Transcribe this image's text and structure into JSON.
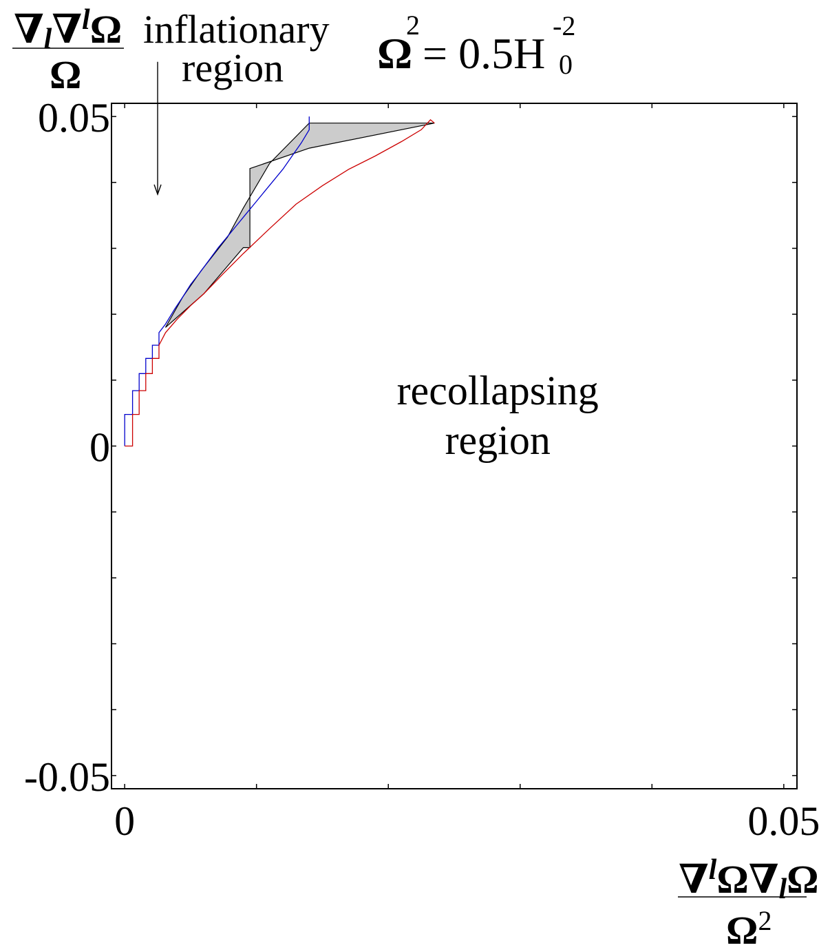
{
  "chart_data": {
    "type": "area",
    "title_lhs": "Ω",
    "title_exp": "2",
    "title_rhs": "= 0.5H",
    "title_rhs_sub": "0",
    "title_rhs_exp": "-2",
    "ylabel": {
      "numerator": [
        "∇",
        "l",
        "∇",
        "l",
        "Ω"
      ],
      "denominator": "Ω"
    },
    "xlabel": {
      "numerator": [
        "∇",
        "l",
        "Ω",
        "∇",
        "l",
        "Ω"
      ],
      "denominator": "Ω",
      "denominator_exp": "2"
    },
    "xlim": [
      -0.001,
      0.051
    ],
    "ylim": [
      -0.052,
      0.052
    ],
    "x_ticks": [
      0,
      0.01,
      0.02,
      0.03,
      0.04,
      0.05
    ],
    "y_ticks": [
      -0.05,
      -0.04,
      -0.03,
      -0.02,
      -0.01,
      0,
      0.01,
      0.02,
      0.03,
      0.04,
      0.05
    ],
    "x_tick_labels": [
      {
        "value": 0,
        "label": "0"
      },
      {
        "value": 0.05,
        "label": "0.05"
      }
    ],
    "y_tick_labels": [
      {
        "value": 0.05,
        "label": "0.05"
      },
      {
        "value": 0,
        "label": "0"
      },
      {
        "value": -0.05,
        "label": "-0.05"
      }
    ],
    "annotations": [
      {
        "id": "inflationary",
        "lines": [
          "inflationary",
          "region"
        ]
      },
      {
        "id": "recollapsing",
        "lines": [
          "recollapsing",
          "region"
        ],
        "x": 0.0283,
        "y": 0.0063
      }
    ],
    "arrow": {
      "x": 0.0025,
      "from_y": 0.0583,
      "to_y": 0.0382
    },
    "shaded_region": {
      "fill": "#cccccc",
      "x": [
        0.0031,
        0.0044,
        0.0058,
        0.0078,
        0.009,
        0.011,
        0.014,
        0.0235,
        0.014,
        0.0095,
        0.0095,
        0.009,
        0.006,
        0.0031
      ],
      "y": [
        0.018,
        0.0226,
        0.0266,
        0.0317,
        0.0361,
        0.0429,
        0.049,
        0.049,
        0.0452,
        0.0421,
        0.0301,
        0.0301,
        0.0231,
        0.018
      ]
    },
    "series": [
      {
        "color": "#0000cc",
        "x": [
          0,
          0,
          0.0006,
          0.0006,
          0.0011,
          0.0011,
          0.0016,
          0.0016,
          0.0021,
          0.0021,
          0.0026,
          0.0026,
          0.0031,
          0.0038,
          0.0044,
          0.005,
          0.0057,
          0.0064,
          0.0071,
          0.0078,
          0.0085,
          0.0092,
          0.0099,
          0.0106,
          0.0113,
          0.012,
          0.0127,
          0.0134,
          0.014,
          0.014
        ],
        "y": [
          0,
          0.0048,
          0.0048,
          0.0084,
          0.0084,
          0.011,
          0.011,
          0.0133,
          0.0133,
          0.0153,
          0.0153,
          0.0172,
          0.0185,
          0.0208,
          0.0226,
          0.0245,
          0.0263,
          0.0282,
          0.0301,
          0.0318,
          0.0335,
          0.0352,
          0.0369,
          0.0386,
          0.0403,
          0.042,
          0.044,
          0.046,
          0.048,
          0.05
        ]
      },
      {
        "color": "#cc0000",
        "x": [
          0,
          0.0006,
          0.0006,
          0.0011,
          0.0011,
          0.0016,
          0.0016,
          0.0021,
          0.0021,
          0.0026,
          0.0026,
          0.0031,
          0.004,
          0.005,
          0.006,
          0.0075,
          0.009,
          0.011,
          0.013,
          0.015,
          0.017,
          0.019,
          0.021,
          0.0225,
          0.0232,
          0.0235
        ],
        "y": [
          0,
          0.0,
          0.0048,
          0.0048,
          0.0084,
          0.0084,
          0.011,
          0.011,
          0.0133,
          0.0133,
          0.0153,
          0.0172,
          0.0193,
          0.0213,
          0.0231,
          0.0262,
          0.0292,
          0.033,
          0.0367,
          0.0395,
          0.042,
          0.044,
          0.0462,
          0.048,
          0.0495,
          0.049
        ]
      }
    ]
  }
}
